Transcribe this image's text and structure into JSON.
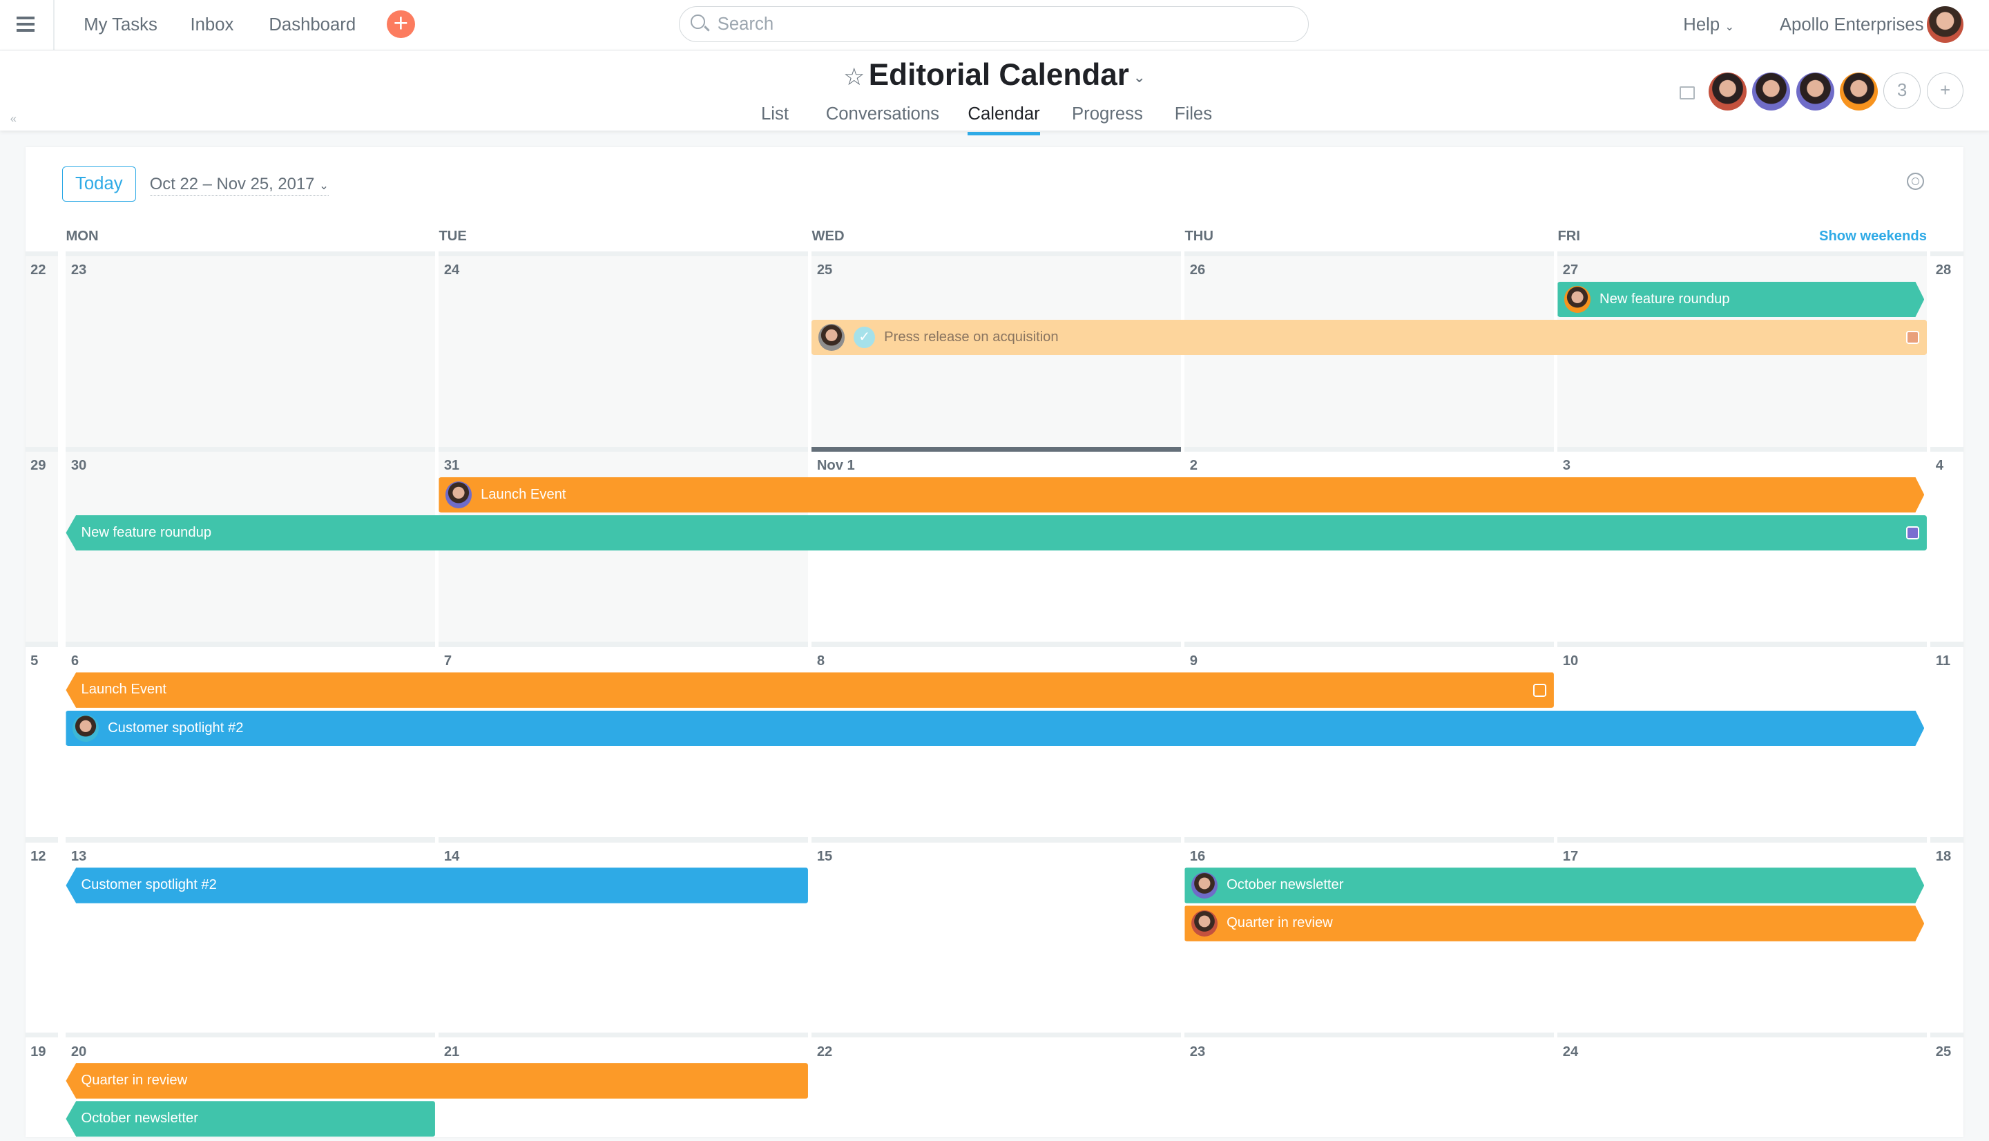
{
  "topbar": {
    "nav": [
      "My Tasks",
      "Inbox",
      "Dashboard"
    ],
    "search_placeholder": "Search",
    "help": "Help",
    "org": "Apollo Enterprises"
  },
  "project": {
    "title": "Editorial Calendar",
    "tabs": [
      "List",
      "Conversations",
      "Calendar",
      "Progress",
      "Files"
    ],
    "active_tab": "Calendar",
    "extra_members": "3",
    "add": "+"
  },
  "calendar": {
    "today_label": "Today",
    "range": "Oct 22 – Nov 25, 2017",
    "show_weekends": "Show weekends",
    "days": [
      "MON",
      "TUE",
      "WED",
      "THU",
      "FRI"
    ],
    "colors": {
      "teal": "#40c4ab",
      "orange": "#fc9a28",
      "blue": "#2eaae6",
      "peach": "#fdd59c"
    },
    "weeks": [
      {
        "nums": [
          "22",
          "23",
          "24",
          "25",
          "26",
          "27",
          "28"
        ],
        "past_through": "FRI",
        "events": [
          {
            "label": "New feature roundup",
            "start": "FRI",
            "end": "FRI",
            "lane": 1,
            "color": "teal",
            "avatar": "#f7931e",
            "arrow_right": true
          },
          {
            "label": "Press release on acquisition",
            "start": "WED",
            "end": "FRI",
            "lane": 2,
            "color": "peach",
            "avatar": "#8e8e8e",
            "completed": true,
            "square": "#e9a07b"
          }
        ]
      },
      {
        "nums": [
          "29",
          "30",
          "31",
          "Nov 1",
          "2",
          "3",
          "4"
        ],
        "past_through": "TUE",
        "today": "WED",
        "events": [
          {
            "label": "Launch Event",
            "start": "TUE",
            "end": "FRI",
            "lane": 1,
            "color": "orange",
            "avatar": "#6f6cc8",
            "arrow_right": true
          },
          {
            "label": "New feature roundup",
            "start": "MON",
            "end": "FRI",
            "lane": 2,
            "color": "teal",
            "arrow_left": true,
            "square": "#7a6fd0"
          }
        ]
      },
      {
        "nums": [
          "5",
          "6",
          "7",
          "8",
          "9",
          "10",
          "11"
        ],
        "events": [
          {
            "label": "Launch Event",
            "start": "MON",
            "end": "THU",
            "lane": 1,
            "color": "orange",
            "arrow_left": true,
            "square": "#fc9a28"
          },
          {
            "label": "Customer spotlight #2",
            "start": "MON",
            "end": "FRI",
            "lane": 2,
            "color": "blue",
            "avatar": "#3db7d6",
            "arrow_right": true
          }
        ]
      },
      {
        "nums": [
          "12",
          "13",
          "14",
          "15",
          "16",
          "17",
          "18"
        ],
        "events": [
          {
            "label": "Customer spotlight #2",
            "start": "MON",
            "end": "TUE",
            "lane": 1,
            "color": "blue",
            "arrow_left": true
          },
          {
            "label": "October newsletter",
            "start": "THU",
            "end": "FRI",
            "lane": 1,
            "color": "teal",
            "avatar": "#6f6cc8",
            "arrow_right": true
          },
          {
            "label": "Quarter in review",
            "start": "THU",
            "end": "FRI",
            "lane": 2,
            "color": "orange",
            "avatar": "#c4523e",
            "arrow_right": true
          }
        ]
      },
      {
        "nums": [
          "19",
          "20",
          "21",
          "22",
          "23",
          "24",
          "25"
        ],
        "events": [
          {
            "label": "Quarter in review",
            "start": "MON",
            "end": "TUE",
            "lane": 1,
            "color": "orange",
            "arrow_left": true
          },
          {
            "label": "October newsletter",
            "start": "MON",
            "end": "MON",
            "lane": 2,
            "color": "teal",
            "arrow_left": true
          }
        ]
      }
    ]
  },
  "avatars": {
    "user": "#c4523e",
    "members": [
      "#c4523e",
      "#6f6cc8",
      "#6f6cc8",
      "#f7931e"
    ]
  }
}
